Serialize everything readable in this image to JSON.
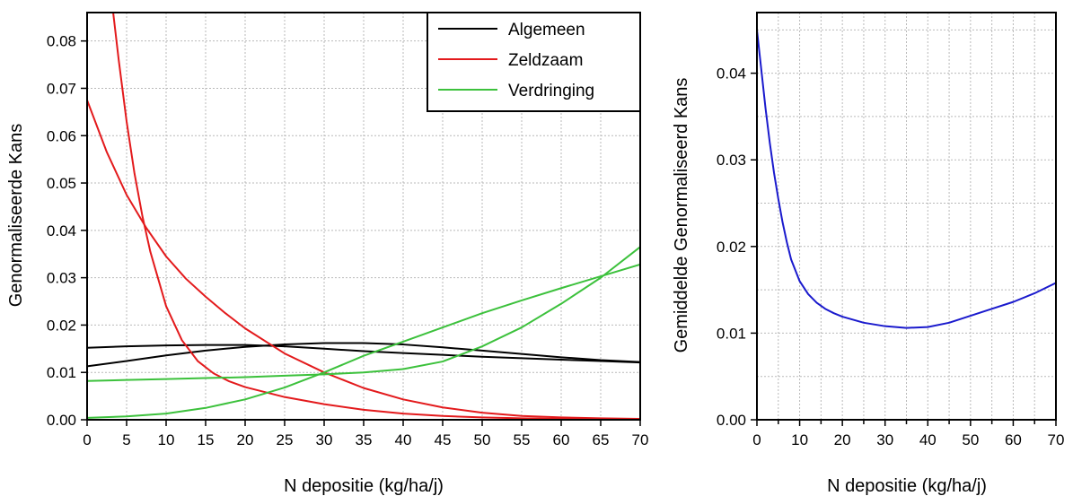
{
  "chart_data": [
    {
      "type": "line",
      "xlabel": "N depositie (kg/ha/j)",
      "ylabel": "Genormaliseerde  Kans",
      "xlim": [
        0,
        70
      ],
      "ylim": [
        0,
        0.086
      ],
      "xticks": [
        "0",
        "5",
        "10",
        "15",
        "20",
        "25",
        "30",
        "35",
        "40",
        "45",
        "50",
        "55",
        "60",
        "65",
        "70"
      ],
      "yticks": [
        "0.00",
        "0.01",
        "0.02",
        "0.03",
        "0.04",
        "0.05",
        "0.06",
        "0.07",
        "0.08"
      ],
      "grid": true,
      "legend_position": "top-right",
      "legend": [
        {
          "name": "Algemeen",
          "color": "#000000"
        },
        {
          "name": "Zeldzaam",
          "color": "#e31a1c"
        },
        {
          "name": "Verdringing",
          "color": "#3cc13c"
        }
      ],
      "series": [
        {
          "group": "Algemeen",
          "color": "#000000",
          "x": [
            0,
            5,
            10,
            15,
            20,
            25,
            30,
            35,
            40,
            45,
            50,
            55,
            60,
            65,
            70
          ],
          "y": [
            0.0152,
            0.0155,
            0.0157,
            0.0158,
            0.0158,
            0.0155,
            0.015,
            0.0145,
            0.0141,
            0.0137,
            0.0133,
            0.013,
            0.0127,
            0.0124,
            0.0121
          ]
        },
        {
          "group": "Algemeen",
          "color": "#000000",
          "x": [
            0,
            5,
            10,
            15,
            20,
            25,
            30,
            35,
            40,
            45,
            50,
            55,
            60,
            65,
            70
          ],
          "y": [
            0.0113,
            0.0124,
            0.0136,
            0.0146,
            0.0154,
            0.0159,
            0.0162,
            0.0162,
            0.0159,
            0.0153,
            0.0146,
            0.0139,
            0.0132,
            0.0126,
            0.0122
          ]
        },
        {
          "group": "Zeldzaam",
          "color": "#e31a1c",
          "x": [
            0,
            2.5,
            5,
            7.5,
            10,
            12.5,
            15,
            17.5,
            20,
            25,
            30,
            35,
            40,
            45,
            50,
            55,
            60,
            65,
            70
          ],
          "y": [
            0.0675,
            0.0565,
            0.0475,
            0.0405,
            0.0345,
            0.0298,
            0.026,
            0.0225,
            0.0193,
            0.014,
            0.01,
            0.0067,
            0.0043,
            0.0026,
            0.0015,
            0.0008,
            0.0005,
            0.0003,
            0.0002
          ]
        },
        {
          "group": "Zeldzaam",
          "color": "#e31a1c",
          "x": [
            3.3,
            4,
            5,
            6,
            7,
            8,
            10,
            12,
            14,
            16,
            18,
            20,
            25,
            30,
            35,
            40,
            45,
            50,
            55,
            60,
            65,
            70
          ],
          "y": [
            0.086,
            0.076,
            0.063,
            0.052,
            0.043,
            0.0355,
            0.024,
            0.0168,
            0.0124,
            0.0098,
            0.0081,
            0.0069,
            0.0048,
            0.0033,
            0.0021,
            0.0013,
            0.0008,
            0.0005,
            0.0003,
            0.0002,
            0.0001,
            0.0001
          ]
        },
        {
          "group": "Verdringing",
          "color": "#3cc13c",
          "x": [
            0,
            5,
            10,
            15,
            20,
            25,
            30,
            35,
            40,
            45,
            50,
            55,
            60,
            65,
            70
          ],
          "y": [
            0.0082,
            0.0084,
            0.0086,
            0.0088,
            0.009,
            0.0093,
            0.0096,
            0.01,
            0.0107,
            0.0123,
            0.0155,
            0.0195,
            0.0245,
            0.03,
            0.0365
          ]
        },
        {
          "group": "Verdringing",
          "color": "#3cc13c",
          "x": [
            0,
            5,
            10,
            15,
            20,
            25,
            30,
            35,
            40,
            45,
            50,
            55,
            60,
            65,
            70
          ],
          "y": [
            0.0004,
            0.0007,
            0.0013,
            0.0025,
            0.0043,
            0.0068,
            0.01,
            0.0135,
            0.0165,
            0.0195,
            0.0225,
            0.0252,
            0.0278,
            0.0303,
            0.0328
          ]
        }
      ]
    },
    {
      "type": "line",
      "xlabel": "N depositie (kg/ha/j)",
      "ylabel": "Gemiddelde  Genormaliseerd  Kans",
      "xlim": [
        0,
        70
      ],
      "ylim": [
        0,
        0.047
      ],
      "xticks": [
        "0",
        "10",
        "20",
        "30",
        "40",
        "50",
        "60",
        "70"
      ],
      "yticks": [
        "0.00",
        "0.01",
        "0.02",
        "0.03",
        "0.04"
      ],
      "grid": true,
      "series": [
        {
          "color": "#1a1acd",
          "x": [
            0,
            1,
            2,
            3,
            4,
            5,
            6,
            7,
            8,
            10,
            12,
            14,
            16,
            18,
            20,
            25,
            30,
            35,
            40,
            45,
            50,
            55,
            60,
            65,
            70
          ],
          "y": [
            0.045,
            0.0405,
            0.036,
            0.032,
            0.0285,
            0.0255,
            0.0228,
            0.0205,
            0.0185,
            0.016,
            0.0145,
            0.0135,
            0.0128,
            0.0123,
            0.0119,
            0.0112,
            0.0108,
            0.0106,
            0.0107,
            0.0112,
            0.012,
            0.0128,
            0.0136,
            0.0146,
            0.0158
          ]
        }
      ]
    }
  ]
}
